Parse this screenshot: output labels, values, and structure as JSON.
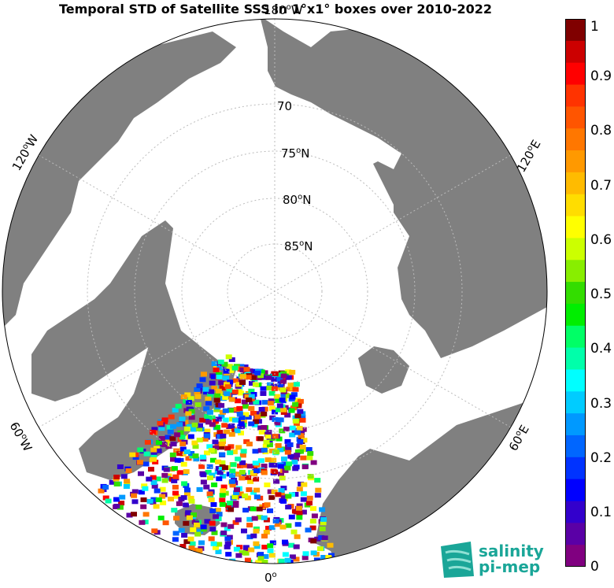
{
  "title": "Temporal STD of Satellite SSS in 1°x1° boxes over 2010-2022",
  "map": {
    "projection": "North Polar Stereographic",
    "lat_labels": [
      "70",
      "75",
      "80",
      "85"
    ],
    "lat_suffix": "N",
    "lon_labels": {
      "top": "180",
      "top_suffix": "W",
      "bottom": "0",
      "left_upper": "120",
      "left_upper_suffix": "W",
      "left_lower": "60",
      "left_lower_suffix": "W",
      "right_upper": "120",
      "right_upper_suffix": "E",
      "right_lower": "60",
      "right_lower_suffix": "E"
    },
    "land_color": "#808080",
    "ocean_color": "#ffffff"
  },
  "colorbar": {
    "min": 0,
    "max": 1,
    "tick_labels": [
      "1",
      "0.9",
      "0.8",
      "0.7",
      "0.6",
      "0.5",
      "0.4",
      "0.3",
      "0.2",
      "0.1",
      "0"
    ],
    "colors": [
      "#800080",
      "#5a00a6",
      "#3300cc",
      "#0000ff",
      "#0033ff",
      "#0066ff",
      "#0099ff",
      "#00ccff",
      "#00ffff",
      "#00ffaa",
      "#00ff66",
      "#00ee00",
      "#33dd00",
      "#88ee00",
      "#ccff00",
      "#ffff00",
      "#ffdd00",
      "#ffbb00",
      "#ff9900",
      "#ff7700",
      "#ff5500",
      "#ff3300",
      "#ff0000",
      "#cc0000",
      "#800000"
    ]
  },
  "logo": {
    "line1": "salinity",
    "line2": "pi-mep",
    "color": "#1aa698"
  }
}
